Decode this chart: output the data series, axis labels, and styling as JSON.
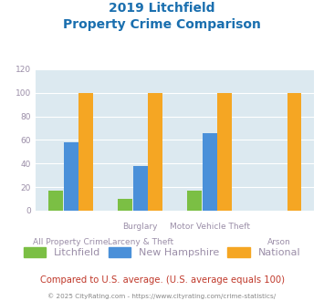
{
  "title_line1": "2019 Litchfield",
  "title_line2": "Property Crime Comparison",
  "category_labels_top": [
    "",
    "Burglary",
    "Motor Vehicle Theft",
    ""
  ],
  "category_labels_bot": [
    "All Property Crime",
    "Larceny & Theft",
    "",
    "Arson"
  ],
  "litchfield": [
    17,
    10,
    17,
    0
  ],
  "new_hampshire": [
    58,
    38,
    66,
    0
  ],
  "national": [
    100,
    100,
    100,
    100
  ],
  "bar_colors": {
    "litchfield": "#7bbf44",
    "new_hampshire": "#4a90d9",
    "national": "#f5a623"
  },
  "ylim": [
    0,
    120
  ],
  "yticks": [
    0,
    20,
    40,
    60,
    80,
    100,
    120
  ],
  "title_color": "#1a6faf",
  "axis_label_color": "#9b8ea8",
  "legend_labels": [
    "Litchfield",
    "New Hampshire",
    "National"
  ],
  "footer_text": "Compared to U.S. average. (U.S. average equals 100)",
  "copyright_text": "© 2025 CityRating.com - https://www.cityrating.com/crime-statistics/",
  "bg_color": "#dce9f0",
  "fig_bg_color": "#ffffff",
  "grid_color": "#ffffff",
  "footer_color": "#c0392b",
  "copyright_color": "#888888"
}
